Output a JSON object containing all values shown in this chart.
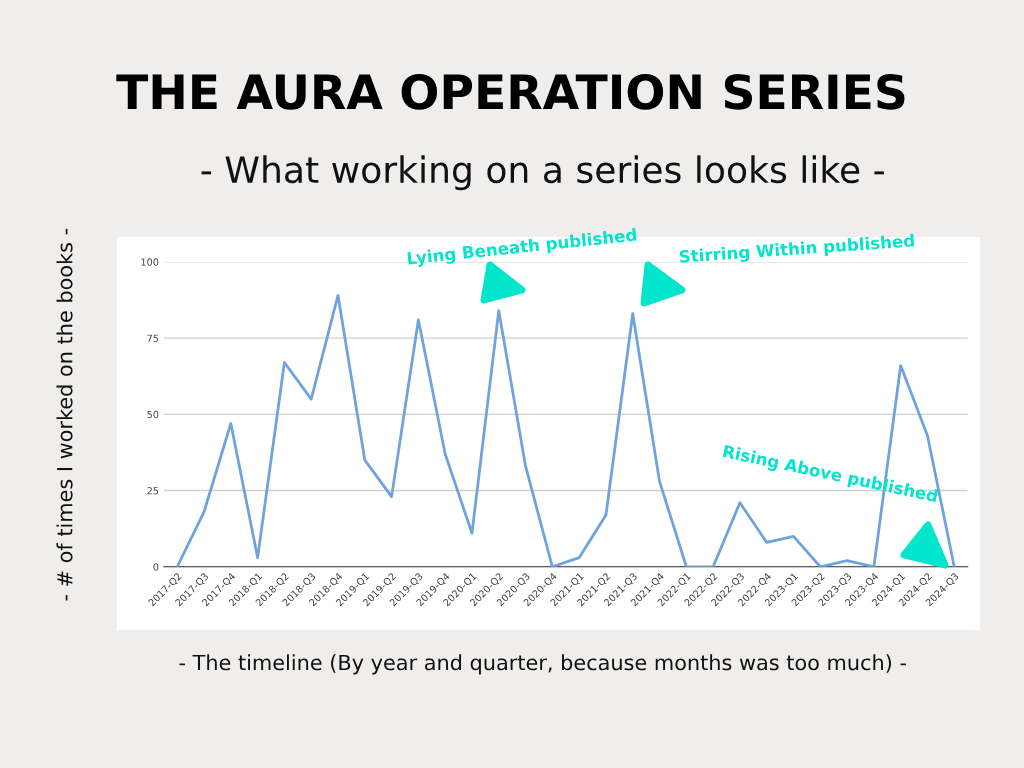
{
  "chart_data": {
    "type": "line",
    "title": "THE AURA OPERATION SERIES",
    "subtitle": "- What working on a series looks like -",
    "xlabel": "- The timeline (By year and quarter, because months was too much) -",
    "ylabel": "- # of times I worked on the books -",
    "categories": [
      "2017-Q2",
      "2017-Q3",
      "2017-Q4",
      "2018-Q1",
      "2018-Q2",
      "2018-Q3",
      "2018-Q4",
      "2019-Q1",
      "2019-Q2",
      "2019-Q3",
      "2019-Q4",
      "2020-Q1",
      "2020-Q2",
      "2020-Q3",
      "2020-Q4",
      "2021-Q1",
      "2021-Q2",
      "2021-Q3",
      "2021-Q4",
      "2022-Q1",
      "2022-Q2",
      "2022-Q3",
      "2022-Q4",
      "2023-Q1",
      "2023-Q2",
      "2023-Q3",
      "2023-Q4",
      "2024-Q1",
      "2024-Q2",
      "2024-Q3"
    ],
    "series": [
      {
        "color": "#6fa3dd",
        "values": [
          0,
          18,
          47,
          3,
          67,
          55,
          89,
          35,
          23,
          81,
          37,
          11,
          84,
          33,
          0,
          3,
          17,
          83,
          28,
          0,
          0,
          21,
          8,
          10,
          0,
          2,
          0,
          66,
          43,
          0
        ]
      }
    ],
    "ylim": [
      0,
      100
    ],
    "yticks": [
      0,
      25,
      50,
      75,
      100
    ],
    "grid": "y",
    "marker": "none",
    "line_style": "solid",
    "annotations": [
      "Lying Beneath published",
      "Stirring Within published",
      "Rising Above published"
    ]
  }
}
